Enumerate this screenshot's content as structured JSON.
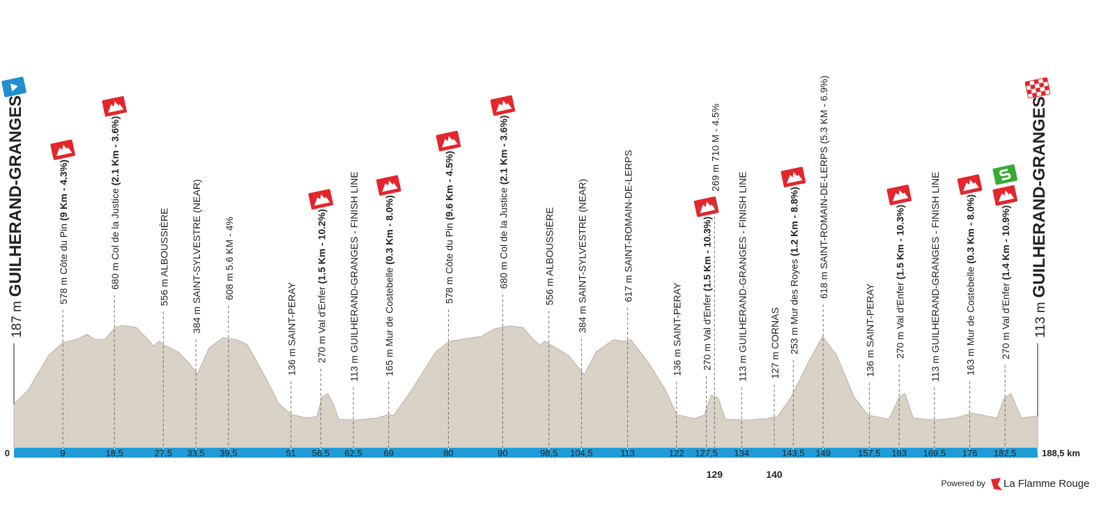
{
  "chart_data": {
    "type": "area",
    "x": [
      0,
      2.6,
      6.4,
      9,
      11.6,
      13.5,
      14.8,
      16.7,
      18.6,
      19.9,
      22.5,
      25,
      25.7,
      26.7,
      27.6,
      30.2,
      32.1,
      33.8,
      35.9,
      38.5,
      41.1,
      43,
      46.2,
      48.8,
      51.1,
      53.9,
      55.8,
      56.7,
      57.8,
      58.8,
      59.8,
      62.9,
      66.8,
      69.1,
      69.9,
      73.2,
      77.7,
      80.2,
      83.4,
      86,
      88.6,
      91.1,
      93.7,
      95.6,
      96.9,
      97.8,
      98.8,
      102.1,
      105,
      107.2,
      110.4,
      112.3,
      113.6,
      116.8,
      120,
      122,
      125.2,
      127.1,
      128.4,
      129.7,
      131,
      134.8,
      138.6,
      140.6,
      143.1,
      146.3,
      148.9,
      151.5,
      154.7,
      157.3,
      161.1,
      163,
      164.1,
      165.6,
      169.5,
      173.3,
      176.5,
      181,
      182.3,
      183.6,
      185.5,
      188.5
    ],
    "values": [
      187,
      275,
      493,
      572,
      594,
      624,
      594,
      590,
      668,
      680,
      668,
      581,
      550,
      581,
      559,
      515,
      450,
      376,
      537,
      603,
      590,
      559,
      362,
      188,
      122,
      100,
      109,
      231,
      253,
      188,
      92,
      87,
      100,
      122,
      114,
      275,
      515,
      581,
      598,
      611,
      659,
      677,
      668,
      594,
      555,
      581,
      559,
      493,
      371,
      515,
      590,
      581,
      590,
      450,
      275,
      122,
      96,
      118,
      245,
      223,
      92,
      87,
      96,
      109,
      231,
      450,
      611,
      493,
      231,
      118,
      92,
      231,
      253,
      100,
      87,
      100,
      131,
      100,
      223,
      253,
      100,
      113
    ],
    "color": "#d9d2c6",
    "xlim": [
      0,
      188.5
    ],
    "ylim": [
      0,
      700
    ],
    "xticks": [
      0,
      9,
      {
        "value": 18.5,
        "label": "18,5"
      },
      {
        "value": 27.5,
        "label": "27,5"
      },
      {
        "value": 33.5,
        "label": "33,5"
      },
      {
        "value": 39.5,
        "label": "39,5"
      },
      51,
      {
        "value": 56.5,
        "label": "56,5"
      },
      {
        "value": 62.5,
        "label": "62,5"
      },
      69,
      80,
      90,
      {
        "value": 98.5,
        "label": "98,5"
      },
      {
        "value": 104.5,
        "label": "104,5"
      },
      113,
      122,
      {
        "value": 127.5,
        "label": "127,5"
      },
      134,
      {
        "value": 143.5,
        "label": "143,5"
      },
      149,
      {
        "value": 157.5,
        "label": "157,5"
      },
      163,
      {
        "value": 169.5,
        "label": "169,5"
      },
      176,
      {
        "value": 182.5,
        "label": "182,5"
      },
      {
        "value": 188.5,
        "label": "188,5 km"
      }
    ],
    "xticks_below": [
      129,
      140
    ],
    "annotations": [
      {
        "km": 0,
        "text": "187 m",
        "detail": "GUILHERAND-GRANGES",
        "icons": [
          "start"
        ]
      },
      {
        "km": 9,
        "text": "578 m Côte du Pin",
        "detail": "(9 Km - 4.3%)",
        "icons": [
          "climb"
        ]
      },
      {
        "km": 18.5,
        "text": "680 m Col de la Justice",
        "detail": "(2.1 Km - 3.6%)",
        "icons": [
          "climb"
        ]
      },
      {
        "km": 27.5,
        "text": "556 m ALBOUSSIÈRE"
      },
      {
        "km": 33.5,
        "text": "384 m SAINT-SYLVESTRE (NEAR)"
      },
      {
        "km": 39.5,
        "text": "608 m 5.6 KM - 4%"
      },
      {
        "km": 51,
        "text": "136 m SAINT-PERAY"
      },
      {
        "km": 56.5,
        "text": "270 m Val d'Enfer",
        "detail": "(1.5 Km - 10.2%)",
        "icons": [
          "climb"
        ]
      },
      {
        "km": 62.5,
        "text": "113 m GUILHERAND-GRANGES - FINISH LINE"
      },
      {
        "km": 69,
        "text": "165 m Mur de Costebelle",
        "detail": "(0.3 Km - 8.0%)",
        "icons": [
          "climb"
        ]
      },
      {
        "km": 80,
        "text": "578 m Côte du Pin",
        "detail": "(9.6 Km - 4.5%)",
        "icons": [
          "climb"
        ]
      },
      {
        "km": 90,
        "text": "680 m Col de la Justice",
        "detail": "(2.1 Km - 3.6%)",
        "icons": [
          "climb"
        ]
      },
      {
        "km": 98.5,
        "text": "556 m ALBOUSSIÈRE"
      },
      {
        "km": 104.5,
        "text": "384 m SAINT-SYLVESTRE (NEAR)"
      },
      {
        "km": 113,
        "text": "617 m SAINT-ROMAIN-DE-LERPS"
      },
      {
        "km": 122,
        "text": "136 m SAINT-PERAY"
      },
      {
        "km": 127.5,
        "text": "270 m Val d'Enfer",
        "detail": "(1.5 Km - 10.3%)",
        "icons": [
          "climb"
        ]
      },
      {
        "km": 129,
        "text": "269 m 710 M - 4.5%"
      },
      {
        "km": 134,
        "text": "113 m GUILHERAND-GRANGES - FINISH LINE"
      },
      {
        "km": 140,
        "text": "127 m CORNAS"
      },
      {
        "km": 143.5,
        "text": "253 m Mur des Royes",
        "detail": "(1.2 Km - 8.8%)",
        "icons": [
          "climb"
        ]
      },
      {
        "km": 149,
        "text": "618 m SAINT-ROMAIN-DE-LERPS (5.3 KM - 6.9%)"
      },
      {
        "km": 157.5,
        "text": "136 m SAINT-PERAY"
      },
      {
        "km": 163,
        "text": "270 m Val d'Enfer",
        "detail": "(1.5 Km - 10.3%)",
        "icons": [
          "climb"
        ]
      },
      {
        "km": 169.5,
        "text": "113 m GUILHERAND-GRANGES - FINISH LINE"
      },
      {
        "km": 176,
        "text": "163 m Mur de Costebelle",
        "detail": "(0.3 Km - 8.0%)",
        "icons": [
          "climb"
        ]
      },
      {
        "km": 182.5,
        "text": "270 m Val d'Enfer",
        "detail": "(1.4 Km - 10.9%)",
        "icons": [
          "climb",
          "sprint"
        ]
      },
      {
        "km": 188.5,
        "text": "113 m",
        "detail": "GUILHERAND-GRANGES",
        "icons": [
          "finish"
        ]
      }
    ],
    "credit": "Powered by",
    "brand": "La Flamme Rouge"
  }
}
